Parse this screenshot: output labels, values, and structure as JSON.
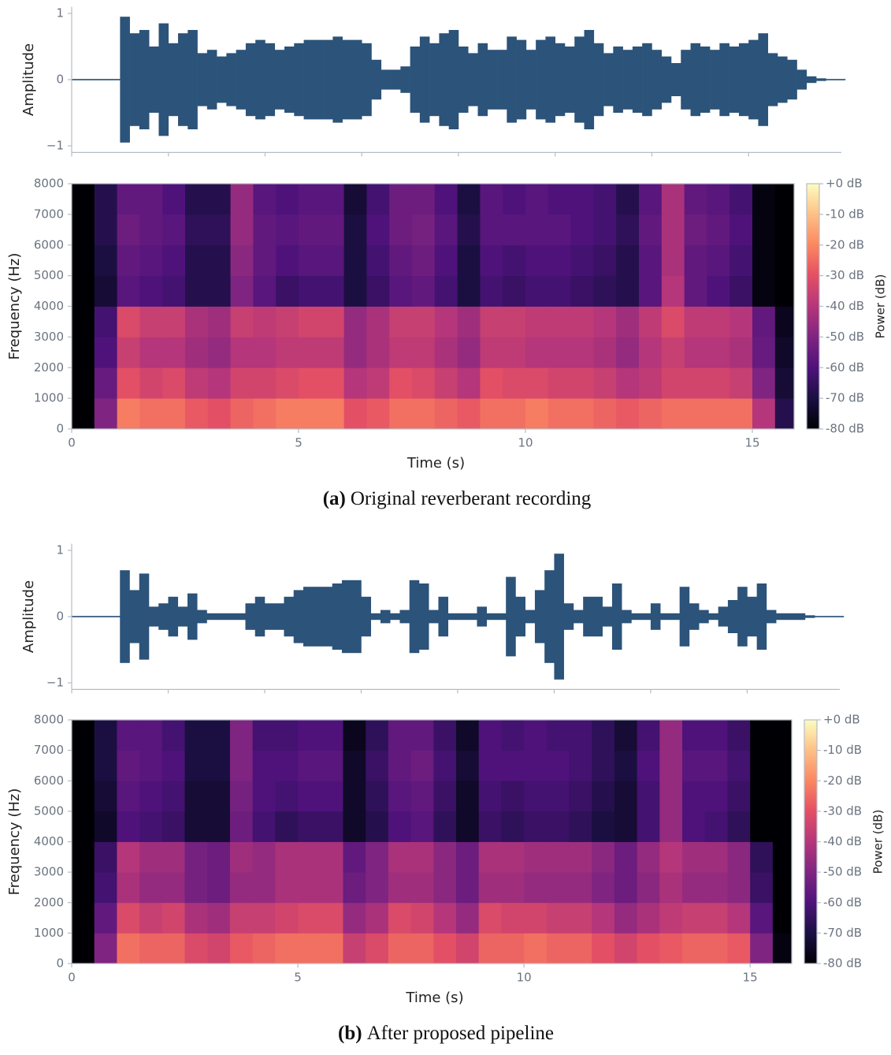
{
  "chart_data": [
    {
      "type": "envelope",
      "ylabel": "Amplitude",
      "color": "#2c5379",
      "x": [
        0,
        0.2,
        0.4,
        0.6,
        0.8,
        1,
        1.2,
        1.4,
        1.6,
        1.8,
        2,
        2.2,
        2.4,
        2.6,
        2.8,
        3,
        3.2,
        3.4,
        3.6,
        3.8,
        4,
        4.2,
        4.4,
        4.6,
        4.8,
        5,
        5.2,
        5.4,
        5.6,
        5.8,
        6,
        6.2,
        6.4,
        6.6,
        6.8,
        7,
        7.2,
        7.4,
        7.6,
        7.8,
        8,
        8.2,
        8.4,
        8.6,
        8.8,
        9,
        9.2,
        9.4,
        9.6,
        9.8,
        10,
        10.2,
        10.4,
        10.6,
        10.8,
        11,
        11.2,
        11.4,
        11.6,
        11.8,
        12,
        12.2,
        12.4,
        12.6,
        12.8,
        13,
        13.2,
        13.4,
        13.6,
        13.8,
        14,
        14.2,
        14.4,
        14.6,
        14.8,
        15,
        15.2,
        15.4,
        15.6,
        15.8
      ],
      "values": [
        0.01,
        0.01,
        0.01,
        0.01,
        0.01,
        0.95,
        0.7,
        0.75,
        0.5,
        0.85,
        0.55,
        0.7,
        0.75,
        0.4,
        0.45,
        0.35,
        0.4,
        0.45,
        0.55,
        0.6,
        0.55,
        0.45,
        0.5,
        0.55,
        0.6,
        0.6,
        0.6,
        0.65,
        0.6,
        0.6,
        0.55,
        0.3,
        0.15,
        0.15,
        0.2,
        0.5,
        0.65,
        0.55,
        0.7,
        0.75,
        0.5,
        0.4,
        0.55,
        0.45,
        0.45,
        0.65,
        0.6,
        0.45,
        0.6,
        0.65,
        0.55,
        0.5,
        0.65,
        0.75,
        0.55,
        0.4,
        0.5,
        0.45,
        0.5,
        0.55,
        0.45,
        0.35,
        0.25,
        0.45,
        0.55,
        0.5,
        0.45,
        0.55,
        0.5,
        0.55,
        0.6,
        0.7,
        0.4,
        0.35,
        0.3,
        0.15,
        0.05,
        0.02,
        0.01,
        0.01
      ],
      "xlim": [
        0,
        15.92
      ],
      "ylim": [
        -1.1,
        1.1
      ],
      "xticks": [
        0,
        2,
        4,
        6,
        8,
        10,
        12,
        14
      ],
      "xtick_labels": false,
      "yticks": [
        {
          "value": -1,
          "label": "−1"
        },
        0,
        1
      ]
    },
    {
      "type": "heatmap",
      "xlabel": "Time (s)",
      "ylabel": "Frequency (Hz)",
      "cmap": "magma",
      "x_bins": [
        0,
        0.5,
        1,
        1.5,
        2,
        2.5,
        3,
        3.5,
        4,
        4.5,
        5,
        5.5,
        6,
        6.5,
        7,
        7.5,
        8,
        8.5,
        9,
        9.5,
        10,
        10.5,
        11,
        11.5,
        12,
        12.5,
        13,
        13.5,
        14,
        14.5,
        15,
        15.5,
        16
      ],
      "y_bins": [
        0,
        1000,
        2000,
        3000,
        4000,
        5000,
        6000,
        7000,
        8000
      ],
      "z": [
        [
          -80,
          -50,
          -22,
          -24,
          -24,
          -28,
          -30,
          -26,
          -24,
          -22,
          -22,
          -22,
          -30,
          -28,
          -24,
          -24,
          -26,
          -28,
          -24,
          -24,
          -22,
          -24,
          -24,
          -26,
          -28,
          -26,
          -24,
          -24,
          -24,
          -24,
          -40,
          -68
        ],
        [
          -80,
          -55,
          -30,
          -34,
          -32,
          -38,
          -40,
          -34,
          -34,
          -32,
          -30,
          -30,
          -40,
          -38,
          -30,
          -32,
          -36,
          -40,
          -30,
          -32,
          -32,
          -34,
          -34,
          -36,
          -40,
          -38,
          -34,
          -34,
          -34,
          -36,
          -50,
          -72
        ],
        [
          -80,
          -60,
          -36,
          -40,
          -40,
          -44,
          -46,
          -40,
          -40,
          -38,
          -38,
          -38,
          -46,
          -42,
          -38,
          -38,
          -42,
          -46,
          -38,
          -38,
          -40,
          -40,
          -40,
          -42,
          -46,
          -40,
          -36,
          -40,
          -40,
          -42,
          -55,
          -74
        ],
        [
          -80,
          -62,
          -32,
          -36,
          -36,
          -42,
          -44,
          -36,
          -38,
          -36,
          -34,
          -34,
          -46,
          -42,
          -36,
          -36,
          -40,
          -44,
          -36,
          -36,
          -38,
          -38,
          -38,
          -40,
          -44,
          -38,
          -32,
          -38,
          -38,
          -40,
          -56,
          -76
        ],
        [
          -80,
          -72,
          -58,
          -60,
          -62,
          -68,
          -68,
          -50,
          -58,
          -64,
          -62,
          -62,
          -70,
          -64,
          -58,
          -56,
          -62,
          -70,
          -62,
          -64,
          -62,
          -62,
          -64,
          -66,
          -68,
          -58,
          -40,
          -56,
          -60,
          -64,
          -78,
          -80
        ],
        [
          -80,
          -70,
          -56,
          -58,
          -60,
          -68,
          -68,
          -48,
          -56,
          -60,
          -58,
          -58,
          -70,
          -62,
          -56,
          -54,
          -60,
          -70,
          -60,
          -62,
          -60,
          -60,
          -62,
          -64,
          -68,
          -58,
          -42,
          -56,
          -58,
          -62,
          -78,
          -80
        ],
        [
          -80,
          -68,
          -54,
          -56,
          -58,
          -66,
          -66,
          -46,
          -56,
          -58,
          -56,
          -56,
          -70,
          -60,
          -54,
          -52,
          -58,
          -68,
          -58,
          -58,
          -58,
          -58,
          -60,
          -62,
          -66,
          -56,
          -42,
          -54,
          -56,
          -60,
          -78,
          -80
        ],
        [
          -80,
          -68,
          -56,
          -56,
          -60,
          -68,
          -68,
          -46,
          -58,
          -60,
          -58,
          -58,
          -72,
          -62,
          -54,
          -54,
          -60,
          -70,
          -58,
          -60,
          -58,
          -60,
          -60,
          -62,
          -68,
          -58,
          -42,
          -56,
          -58,
          -62,
          -78,
          -80
        ]
      ],
      "xlim": [
        0,
        15.92
      ],
      "ylim": [
        0,
        8000
      ],
      "xticks": [
        0,
        5,
        10,
        15
      ],
      "yticks": [
        0,
        1000,
        2000,
        3000,
        4000,
        5000,
        6000,
        7000,
        8000
      ],
      "colorbar": {
        "label": "Power (dB)",
        "lim": [
          -80,
          0
        ],
        "ticks": [
          {
            "value": 0,
            "label": "+0 dB"
          },
          {
            "value": -10,
            "label": "-10 dB"
          },
          {
            "value": -20,
            "label": "-20 dB"
          },
          {
            "value": -30,
            "label": "-30 dB"
          },
          {
            "value": -40,
            "label": "-40 dB"
          },
          {
            "value": -50,
            "label": "-50 dB"
          },
          {
            "value": -60,
            "label": "-60 dB"
          },
          {
            "value": -70,
            "label": "-70 dB"
          },
          {
            "value": -80,
            "label": "-80 dB"
          }
        ]
      }
    },
    {
      "type": "envelope",
      "ylabel": "Amplitude",
      "color": "#2c5379",
      "x": [
        0,
        0.2,
        0.4,
        0.6,
        0.8,
        1,
        1.2,
        1.4,
        1.6,
        1.8,
        2,
        2.2,
        2.4,
        2.6,
        2.8,
        3,
        3.2,
        3.4,
        3.6,
        3.8,
        4,
        4.2,
        4.4,
        4.6,
        4.8,
        5,
        5.2,
        5.4,
        5.6,
        5.8,
        6,
        6.2,
        6.4,
        6.6,
        6.8,
        7,
        7.2,
        7.4,
        7.6,
        7.8,
        8,
        8.2,
        8.4,
        8.6,
        8.8,
        9,
        9.2,
        9.4,
        9.6,
        9.8,
        10,
        10.2,
        10.4,
        10.6,
        10.8,
        11,
        11.2,
        11.4,
        11.6,
        11.8,
        12,
        12.2,
        12.4,
        12.6,
        12.8,
        13,
        13.2,
        13.4,
        13.6,
        13.8,
        14,
        14.2,
        14.4,
        14.6,
        14.8,
        15,
        15.2,
        15.4,
        15.6,
        15.8
      ],
      "values": [
        0.01,
        0.01,
        0.01,
        0.01,
        0.01,
        0.7,
        0.4,
        0.65,
        0.15,
        0.2,
        0.3,
        0.15,
        0.35,
        0.1,
        0.05,
        0.05,
        0.05,
        0.05,
        0.2,
        0.3,
        0.2,
        0.2,
        0.3,
        0.4,
        0.45,
        0.45,
        0.45,
        0.5,
        0.55,
        0.55,
        0.3,
        0.05,
        0.1,
        0.05,
        0.1,
        0.55,
        0.5,
        0.1,
        0.3,
        0.05,
        0.05,
        0.05,
        0.15,
        0.05,
        0.05,
        0.6,
        0.3,
        0.1,
        0.4,
        0.7,
        0.95,
        0.2,
        0.1,
        0.3,
        0.3,
        0.15,
        0.5,
        0.1,
        0.05,
        0.05,
        0.2,
        0.05,
        0.05,
        0.45,
        0.2,
        0.1,
        0.05,
        0.15,
        0.25,
        0.45,
        0.3,
        0.5,
        0.1,
        0.05,
        0.05,
        0.05,
        0.02,
        0.01,
        0.01,
        0.01
      ],
      "xlim": [
        0,
        15.92
      ],
      "ylim": [
        -1.1,
        1.1
      ],
      "xticks": [
        0,
        2,
        4,
        6,
        8,
        10,
        12,
        14
      ],
      "xtick_labels": false,
      "yticks": [
        {
          "value": -1,
          "label": "−1"
        },
        0,
        1
      ]
    },
    {
      "type": "heatmap",
      "xlabel": "Time (s)",
      "ylabel": "Frequency (Hz)",
      "cmap": "magma",
      "x_bins": [
        0,
        0.5,
        1,
        1.5,
        2,
        2.5,
        3,
        3.5,
        4,
        4.5,
        5,
        5.5,
        6,
        6.5,
        7,
        7.5,
        8,
        8.5,
        9,
        9.5,
        10,
        10.5,
        11,
        11.5,
        12,
        12.5,
        13,
        13.5,
        14,
        14.5,
        15,
        15.5,
        16
      ],
      "y_bins": [
        0,
        1000,
        2000,
        3000,
        4000,
        5000,
        6000,
        7000,
        8000
      ],
      "z": [
        [
          -80,
          -50,
          -24,
          -26,
          -26,
          -32,
          -34,
          -28,
          -26,
          -24,
          -24,
          -24,
          -36,
          -32,
          -26,
          -26,
          -30,
          -34,
          -26,
          -26,
          -24,
          -26,
          -26,
          -30,
          -34,
          -30,
          -28,
          -26,
          -26,
          -28,
          -50,
          -78
        ],
        [
          -80,
          -56,
          -32,
          -36,
          -34,
          -42,
          -44,
          -36,
          -36,
          -34,
          -32,
          -32,
          -46,
          -42,
          -32,
          -34,
          -40,
          -46,
          -32,
          -34,
          -34,
          -36,
          -36,
          -40,
          -46,
          -42,
          -38,
          -36,
          -36,
          -40,
          -58,
          -80
        ],
        [
          -80,
          -62,
          -42,
          -46,
          -46,
          -52,
          -54,
          -46,
          -46,
          -42,
          -42,
          -42,
          -54,
          -50,
          -44,
          -44,
          -48,
          -54,
          -44,
          -44,
          -46,
          -46,
          -46,
          -50,
          -54,
          -48,
          -42,
          -46,
          -46,
          -48,
          -64,
          -80
        ],
        [
          -80,
          -64,
          -40,
          -44,
          -44,
          -52,
          -54,
          -44,
          -46,
          -42,
          -42,
          -42,
          -56,
          -50,
          -42,
          -42,
          -48,
          -54,
          -42,
          -42,
          -44,
          -44,
          -44,
          -48,
          -54,
          -46,
          -40,
          -44,
          -44,
          -48,
          -66,
          -80
        ],
        [
          -80,
          -74,
          -60,
          -62,
          -64,
          -72,
          -72,
          -54,
          -62,
          -66,
          -64,
          -64,
          -74,
          -68,
          -60,
          -58,
          -66,
          -74,
          -64,
          -66,
          -64,
          -64,
          -66,
          -70,
          -72,
          -62,
          -46,
          -60,
          -62,
          -66,
          -80,
          -80
        ],
        [
          -80,
          -72,
          -58,
          -60,
          -62,
          -72,
          -72,
          -52,
          -60,
          -62,
          -60,
          -60,
          -74,
          -66,
          -58,
          -56,
          -64,
          -74,
          -62,
          -64,
          -62,
          -62,
          -64,
          -68,
          -72,
          -62,
          -46,
          -60,
          -60,
          -64,
          -80,
          -80
        ],
        [
          -80,
          -70,
          -56,
          -58,
          -60,
          -70,
          -70,
          -50,
          -60,
          -60,
          -58,
          -58,
          -74,
          -64,
          -56,
          -54,
          -62,
          -72,
          -60,
          -60,
          -60,
          -60,
          -62,
          -66,
          -70,
          -60,
          -46,
          -58,
          -58,
          -62,
          -80,
          -80
        ],
        [
          -80,
          -70,
          -58,
          -58,
          -62,
          -70,
          -70,
          -50,
          -62,
          -62,
          -60,
          -60,
          -76,
          -66,
          -56,
          -56,
          -64,
          -74,
          -60,
          -62,
          -60,
          -62,
          -62,
          -66,
          -72,
          -62,
          -46,
          -60,
          -60,
          -64,
          -80,
          -80
        ]
      ],
      "xlim": [
        0,
        15.92
      ],
      "ylim": [
        0,
        8000
      ],
      "xticks": [
        0,
        5,
        10,
        15
      ],
      "yticks": [
        0,
        1000,
        2000,
        3000,
        4000,
        5000,
        6000,
        7000,
        8000
      ],
      "colorbar": {
        "label": "Power (dB)",
        "lim": [
          -80,
          0
        ],
        "ticks": [
          {
            "value": 0,
            "label": "+0 dB"
          },
          {
            "value": -10,
            "label": "-10 dB"
          },
          {
            "value": -20,
            "label": "-20 dB"
          },
          {
            "value": -30,
            "label": "-30 dB"
          },
          {
            "value": -40,
            "label": "-40 dB"
          },
          {
            "value": -50,
            "label": "-50 dB"
          },
          {
            "value": -60,
            "label": "-60 dB"
          },
          {
            "value": -70,
            "label": "-70 dB"
          },
          {
            "value": -80,
            "label": "-80 dB"
          }
        ]
      }
    }
  ],
  "captions": [
    {
      "label": "(a)",
      "text": "Original reverberant recording"
    },
    {
      "label": "(b)",
      "text": "After proposed pipeline"
    }
  ]
}
